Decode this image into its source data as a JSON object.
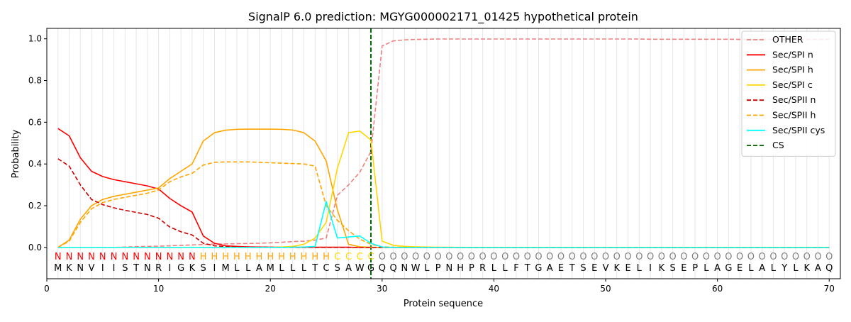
{
  "chart_data": {
    "type": "line",
    "title": "SignalP 6.0 prediction: MGYG000002171_01425 hypothetical protein",
    "xlabel": "Protein sequence",
    "ylabel": "Probability",
    "xlim": [
      0,
      71
    ],
    "ylim": [
      -0.15,
      1.05
    ],
    "x_ticks": [
      0,
      10,
      20,
      30,
      40,
      50,
      60,
      70
    ],
    "y_ticks": [
      0.0,
      0.2,
      0.4,
      0.6,
      0.8,
      1.0
    ],
    "x_tick_labels": [
      "0",
      "10",
      "20",
      "30",
      "40",
      "50",
      "60",
      "70"
    ],
    "y_tick_labels": [
      "0.0",
      "0.2",
      "0.4",
      "0.6",
      "0.8",
      "1.0"
    ],
    "grid": "vertical lines at each residue",
    "legend_position": "top-right",
    "sequence": [
      "M",
      "K",
      "N",
      "V",
      "I",
      "I",
      "S",
      "T",
      "N",
      "R",
      "I",
      "G",
      "K",
      "S",
      "I",
      "M",
      "L",
      "L",
      "A",
      "M",
      "L",
      "L",
      "L",
      "T",
      "C",
      "S",
      "A",
      "W",
      "G",
      "Q",
      "Q",
      "N",
      "W",
      "L",
      "P",
      "N",
      "H",
      "P",
      "R",
      "L",
      "L",
      "F",
      "T",
      "G",
      "A",
      "E",
      "T",
      "S",
      "E",
      "V",
      "K",
      "E",
      "L",
      "I",
      "K",
      "S",
      "E",
      "P",
      "L",
      "A",
      "G",
      "E",
      "L",
      "A",
      "L",
      "Y",
      "L",
      "K",
      "A",
      "Q"
    ],
    "region_labels": [
      "N",
      "N",
      "N",
      "N",
      "N",
      "N",
      "N",
      "N",
      "N",
      "N",
      "N",
      "N",
      "N",
      "H",
      "H",
      "H",
      "H",
      "H",
      "H",
      "H",
      "H",
      "H",
      "H",
      "H",
      "H",
      "C",
      "C",
      "C",
      "C",
      "O",
      "O",
      "O",
      "O",
      "O",
      "O",
      "O",
      "O",
      "O",
      "O",
      "O",
      "O",
      "O",
      "O",
      "O",
      "O",
      "O",
      "O",
      "O",
      "O",
      "O",
      "O",
      "O",
      "O",
      "O",
      "O",
      "O",
      "O",
      "O",
      "O",
      "O",
      "O",
      "O",
      "O",
      "O",
      "O",
      "O",
      "O",
      "O",
      "O",
      "O"
    ],
    "region_label_colors": {
      "N": "#ff0000",
      "H": "#ffa500",
      "C": "#ffd700",
      "O": "#808080"
    },
    "cleavage_site": 29,
    "series": [
      {
        "name": "OTHER",
        "color": "#f08080",
        "dash": "dashed",
        "values": [
          0.0,
          0.0,
          0.0,
          0.0,
          0.0,
          0.0,
          0.002,
          0.004,
          0.005,
          0.006,
          0.008,
          0.01,
          0.012,
          0.014,
          0.016,
          0.017,
          0.018,
          0.019,
          0.02,
          0.022,
          0.025,
          0.028,
          0.03,
          0.035,
          0.045,
          0.25,
          0.3,
          0.36,
          0.46,
          0.965,
          0.99,
          0.995,
          0.997,
          0.998,
          0.999,
          0.999,
          0.999,
          0.999,
          0.999,
          0.999,
          0.999,
          0.999,
          0.999,
          0.999,
          0.999,
          0.999,
          0.999,
          0.999,
          0.999,
          0.999,
          0.999,
          0.999,
          0.999,
          0.998,
          0.998,
          0.998,
          0.998,
          0.998,
          0.998,
          0.998,
          0.998,
          0.997,
          0.997,
          0.997,
          0.997,
          0.997,
          0.997,
          0.997,
          0.997,
          0.997
        ]
      },
      {
        "name": "Sec/SPI n",
        "color": "#ff0000",
        "dash": "solid",
        "values": [
          0.57,
          0.535,
          0.43,
          0.365,
          0.34,
          0.325,
          0.315,
          0.305,
          0.295,
          0.28,
          0.235,
          0.2,
          0.17,
          0.055,
          0.02,
          0.008,
          0.005,
          0.003,
          0.002,
          0.001,
          0.001,
          0.001,
          0.001,
          0.001,
          0.001,
          0.001,
          0.001,
          0.0,
          0.0,
          0.0,
          0.0,
          0.0,
          0.0,
          0.0,
          0.0,
          0.0,
          0.0,
          0.0,
          0.0,
          0.0,
          0.0,
          0.0,
          0.0,
          0.0,
          0.0,
          0.0,
          0.0,
          0.0,
          0.0,
          0.0,
          0.0,
          0.0,
          0.0,
          0.0,
          0.0,
          0.0,
          0.0,
          0.0,
          0.0,
          0.0,
          0.0,
          0.0,
          0.0,
          0.0,
          0.0,
          0.0,
          0.0,
          0.0,
          0.0,
          0.0
        ]
      },
      {
        "name": "Sec/SPI h",
        "color": "#ffa500",
        "dash": "solid",
        "values": [
          0.0,
          0.035,
          0.135,
          0.2,
          0.23,
          0.245,
          0.255,
          0.265,
          0.275,
          0.285,
          0.33,
          0.365,
          0.4,
          0.51,
          0.55,
          0.562,
          0.566,
          0.567,
          0.567,
          0.567,
          0.566,
          0.563,
          0.55,
          0.51,
          0.415,
          0.18,
          0.015,
          0.003,
          0.001,
          0.0,
          0.0,
          0.0,
          0.0,
          0.0,
          0.0,
          0.0,
          0.0,
          0.0,
          0.0,
          0.0,
          0.0,
          0.0,
          0.0,
          0.0,
          0.0,
          0.0,
          0.0,
          0.0,
          0.0,
          0.0,
          0.0,
          0.0,
          0.0,
          0.0,
          0.0,
          0.0,
          0.0,
          0.0,
          0.0,
          0.0,
          0.0,
          0.0,
          0.0,
          0.0,
          0.0,
          0.0,
          0.0,
          0.0,
          0.0,
          0.0
        ]
      },
      {
        "name": "Sec/SPI c",
        "color": "#ffd700",
        "dash": "solid",
        "values": [
          0.0,
          0.0,
          0.0,
          0.0,
          0.0,
          0.0,
          0.0,
          0.0,
          0.0,
          0.0,
          0.0,
          0.0,
          0.0,
          0.0,
          0.0,
          0.0,
          0.0,
          0.0,
          0.0,
          0.0,
          0.002,
          0.005,
          0.015,
          0.045,
          0.12,
          0.38,
          0.55,
          0.558,
          0.515,
          0.03,
          0.01,
          0.005,
          0.003,
          0.002,
          0.001,
          0.001,
          0.0,
          0.0,
          0.0,
          0.0,
          0.0,
          0.0,
          0.0,
          0.0,
          0.0,
          0.0,
          0.0,
          0.0,
          0.0,
          0.0,
          0.0,
          0.0,
          0.0,
          0.0,
          0.0,
          0.0,
          0.0,
          0.0,
          0.0,
          0.0,
          0.0,
          0.0,
          0.0,
          0.0,
          0.0,
          0.0,
          0.0,
          0.0,
          0.0,
          0.0
        ]
      },
      {
        "name": "Sec/SPII n",
        "color": "#cc0000",
        "dash": "dashed",
        "values": [
          0.425,
          0.39,
          0.3,
          0.23,
          0.205,
          0.19,
          0.178,
          0.168,
          0.158,
          0.14,
          0.098,
          0.075,
          0.06,
          0.02,
          0.008,
          0.004,
          0.002,
          0.001,
          0.001,
          0.001,
          0.0,
          0.0,
          0.0,
          0.0,
          0.0,
          0.0,
          0.0,
          0.0,
          0.0,
          0.0,
          0.0,
          0.0,
          0.0,
          0.0,
          0.0,
          0.0,
          0.0,
          0.0,
          0.0,
          0.0,
          0.0,
          0.0,
          0.0,
          0.0,
          0.0,
          0.0,
          0.0,
          0.0,
          0.0,
          0.0,
          0.0,
          0.0,
          0.0,
          0.0,
          0.0,
          0.0,
          0.0,
          0.0,
          0.0,
          0.0,
          0.0,
          0.0,
          0.0,
          0.0,
          0.0,
          0.0,
          0.0,
          0.0,
          0.0,
          0.0
        ]
      },
      {
        "name": "Sec/SPII h",
        "color": "#ffa500",
        "dash": "dashed",
        "values": [
          0.0,
          0.03,
          0.12,
          0.185,
          0.215,
          0.23,
          0.24,
          0.25,
          0.26,
          0.275,
          0.315,
          0.338,
          0.355,
          0.395,
          0.408,
          0.41,
          0.41,
          0.41,
          0.408,
          0.406,
          0.404,
          0.402,
          0.4,
          0.39,
          0.2,
          0.13,
          0.08,
          0.04,
          0.015,
          0.003,
          0.001,
          0.0,
          0.0,
          0.0,
          0.0,
          0.0,
          0.0,
          0.0,
          0.0,
          0.0,
          0.0,
          0.0,
          0.0,
          0.0,
          0.0,
          0.0,
          0.0,
          0.0,
          0.0,
          0.0,
          0.0,
          0.0,
          0.0,
          0.0,
          0.0,
          0.0,
          0.0,
          0.0,
          0.0,
          0.0,
          0.0,
          0.0,
          0.0,
          0.0,
          0.0,
          0.0,
          0.0,
          0.0,
          0.0,
          0.0
        ]
      },
      {
        "name": "Sec/SPII cys",
        "color": "#00ffff",
        "dash": "solid",
        "values": [
          0.0,
          0.0,
          0.0,
          0.0,
          0.0,
          0.0,
          0.0,
          0.0,
          0.0,
          0.0,
          0.0,
          0.0,
          0.0,
          0.0,
          0.0,
          0.0,
          0.0,
          0.0,
          0.0,
          0.0,
          0.0,
          0.001,
          0.002,
          0.005,
          0.22,
          0.045,
          0.05,
          0.055,
          0.02,
          0.002,
          0.0,
          0.0,
          0.0,
          0.0,
          0.0,
          0.0,
          0.0,
          0.0,
          0.0,
          0.0,
          0.0,
          0.0,
          0.0,
          0.0,
          0.0,
          0.0,
          0.0,
          0.0,
          0.0,
          0.0,
          0.0,
          0.0,
          0.0,
          0.0,
          0.0,
          0.0,
          0.0,
          0.0,
          0.0,
          0.0,
          0.0,
          0.0,
          0.0,
          0.0,
          0.0,
          0.0,
          0.0,
          0.0,
          0.0,
          0.0
        ]
      }
    ],
    "cs_marker": {
      "name": "CS",
      "color": "#006400",
      "dash": "dashed"
    }
  }
}
